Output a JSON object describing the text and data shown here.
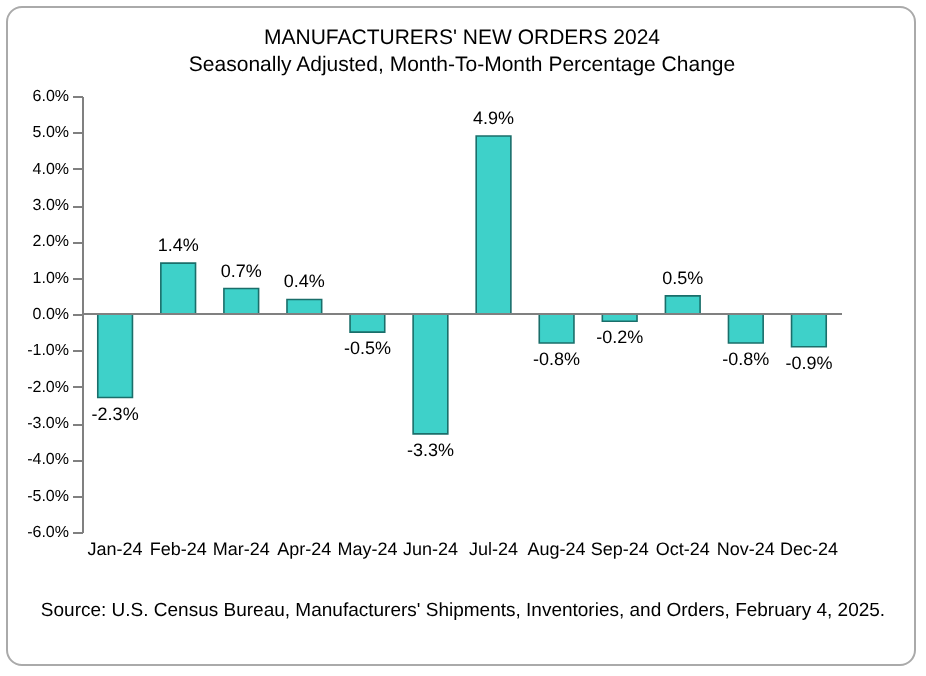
{
  "chart_data": {
    "type": "bar",
    "title": "MANUFACTURERS' NEW ORDERS 2024",
    "subtitle": "Seasonally Adjusted,  Month-To-Month Percentage Change",
    "categories": [
      "Jan-24",
      "Feb-24",
      "Mar-24",
      "Apr-24",
      "May-24",
      "Jun-24",
      "Jul-24",
      "Aug-24",
      "Sep-24",
      "Oct-24",
      "Nov-24",
      "Dec-24"
    ],
    "values": [
      -2.3,
      1.4,
      0.7,
      0.4,
      -0.5,
      -3.3,
      4.9,
      -0.8,
      -0.2,
      0.5,
      -0.8,
      -0.9
    ],
    "value_labels": [
      "-2.3%",
      "1.4%",
      "0.7%",
      "0.4%",
      "-0.5%",
      "-3.3%",
      "4.9%",
      "-0.8%",
      "-0.2%",
      "0.5%",
      "-0.8%",
      "-0.9%"
    ],
    "color": "#3ed1c9",
    "ylim": [
      -6,
      6
    ],
    "yticks": [
      {
        "value": 6,
        "label": "6.0%"
      },
      {
        "value": 5,
        "label": "5.0%"
      },
      {
        "value": 4,
        "label": "4.0%"
      },
      {
        "value": 3,
        "label": "3.0%"
      },
      {
        "value": 2,
        "label": "2.0%"
      },
      {
        "value": 1,
        "label": "1.0%"
      },
      {
        "value": 0,
        "label": "0.0%"
      },
      {
        "value": -1,
        "label": "-1.0%"
      },
      {
        "value": -2,
        "label": "-2.0%"
      },
      {
        "value": -3,
        "label": "-3.0%"
      },
      {
        "value": -4,
        "label": "-4.0%"
      },
      {
        "value": -5,
        "label": "-5.0%"
      },
      {
        "value": -6,
        "label": "-6.0%"
      }
    ],
    "ref_lines": [
      {
        "axis": "y",
        "value": 0,
        "color": "#808080"
      }
    ],
    "grid": false,
    "annotations": [
      "Source: U.S. Census Bureau, Manufacturers' Shipments, Inventories, and Orders, February 4, 2025."
    ]
  }
}
